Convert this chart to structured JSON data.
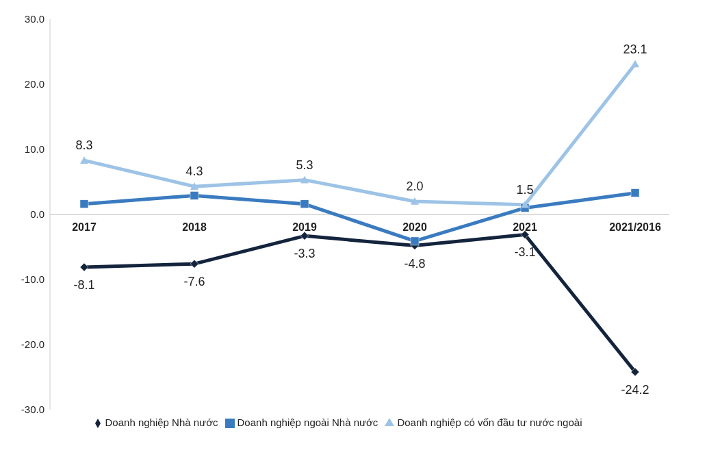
{
  "chart_data": {
    "type": "line",
    "categories": [
      "2017",
      "2018",
      "2019",
      "2020",
      "2021",
      "2021/2016"
    ],
    "series": [
      {
        "name": "Doanh nghiệp Nhà nước",
        "color": "#14243d",
        "marker": "diamond",
        "values": [
          -8.1,
          -7.6,
          -3.3,
          -4.8,
          -3.1,
          -24.2
        ],
        "value_labels": [
          "-8.1",
          "-7.6",
          "-3.3",
          "-4.8",
          "-3.1",
          "-24.2"
        ]
      },
      {
        "name": "Doanh nghiệp ngoài Nhà nước",
        "color": "#3a7bc0",
        "marker": "square",
        "values": [
          1.6,
          2.9,
          1.6,
          -4.1,
          1.0,
          3.3
        ]
      },
      {
        "name": "Doanh nghiệp có vốn đầu tư nước ngoài",
        "color": "#9dc3e6",
        "marker": "triangle",
        "values": [
          8.3,
          4.3,
          5.3,
          2.0,
          1.5,
          23.1
        ],
        "value_labels": [
          "8.3",
          "4.3",
          "5.3",
          "2.0",
          "1.5",
          "23.1"
        ]
      }
    ],
    "ylim": [
      -30,
      30
    ],
    "yticks": [
      {
        "value": -30,
        "label": "-30.0"
      },
      {
        "value": -20,
        "label": "-20.0"
      },
      {
        "value": -10,
        "label": "-10.0"
      },
      {
        "value": 0,
        "label": "0.0"
      },
      {
        "value": 10,
        "label": "10.0"
      },
      {
        "value": 20,
        "label": "20.0"
      },
      {
        "value": 30,
        "label": "30.0"
      }
    ],
    "grid": false,
    "legend": "bottom"
  }
}
